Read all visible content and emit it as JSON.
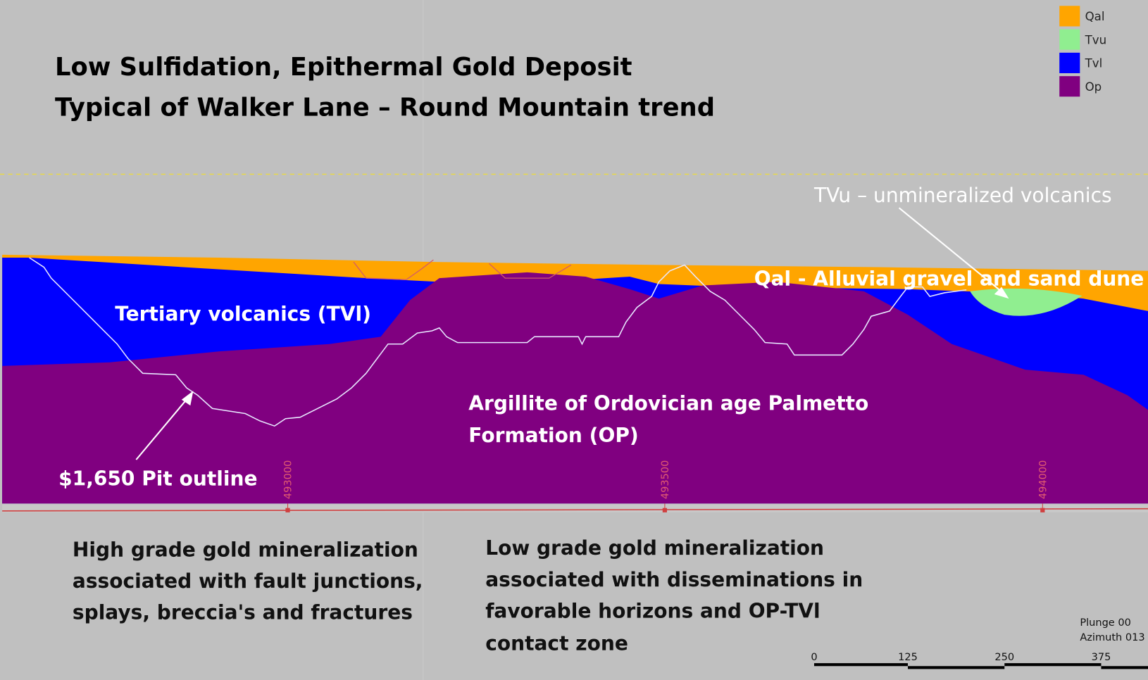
{
  "header": {
    "title_lines": [
      "Low Sulfidation, Epithermal Gold Deposit",
      "Typical of Walker Lane – Round Mountain trend"
    ]
  },
  "legend": {
    "items": [
      {
        "label": "Qal",
        "color": "#ffa500"
      },
      {
        "label": "Tvu",
        "color": "#90ee90"
      },
      {
        "label": "Tvl",
        "color": "#0000ff"
      },
      {
        "label": "Op",
        "color": "#800080"
      }
    ]
  },
  "labels": {
    "tvu": "TVu – unmineralized volcanics",
    "qal": "Qal - Alluvial gravel and sand dune",
    "tvl": "Tertiary volcanics (TVl)",
    "op_lines": [
      "Argillite of Ordovician age Palmetto",
      "Formation (OP)"
    ],
    "pit": "$1,650 Pit outline"
  },
  "eastings": [
    "493000",
    "493500",
    "494000"
  ],
  "notes": {
    "high_grade": [
      "High grade gold mineralization",
      "associated with fault junctions,",
      "splays, breccia's and fractures"
    ],
    "low_grade": [
      "Low grade gold mineralization",
      "associated with disseminations in",
      "favorable horizons and OP-TVl",
      "contact zone"
    ]
  },
  "view": {
    "plunge": "Plunge 00",
    "azimuth": "Azimuth 013"
  },
  "scale_bar": [
    "0",
    "125",
    "250",
    "375"
  ]
}
